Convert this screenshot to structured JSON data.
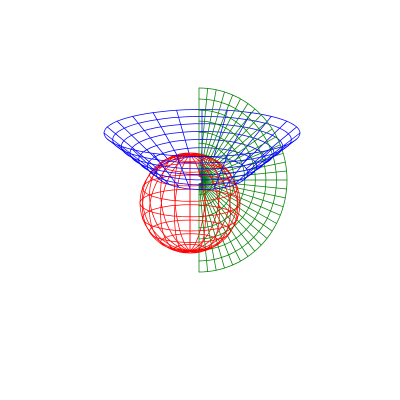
{
  "scene": {
    "background": "#ffffff",
    "surfaces": [
      {
        "id": "sphere",
        "shape": "sphere",
        "color": "#ff0000",
        "meridians": 20,
        "parallels": 10
      },
      {
        "id": "half-disk",
        "shape": "vertical half-disk",
        "color": "#008000",
        "radial_lines": 8,
        "angular_lines": 32
      },
      {
        "id": "cone-ring",
        "shape": "conical ring",
        "color": "#0000ff",
        "radial_lines": 6,
        "angular_lines": 24
      }
    ]
  }
}
